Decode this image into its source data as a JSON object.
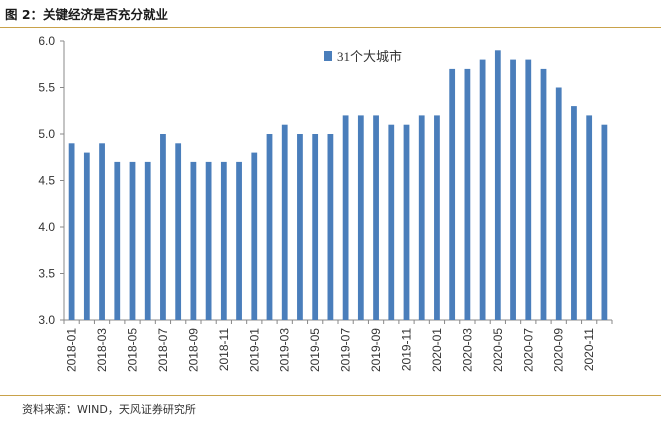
{
  "header": {
    "title": "图 2：关键经济是否充分就业"
  },
  "footer": {
    "source": "资料来源：WIND，天风证券研究所"
  },
  "colors": {
    "bar": "#4a7ebb",
    "rule": "#c9a24a",
    "axis": "#888888"
  },
  "chart_data": {
    "type": "bar",
    "title": "",
    "xlabel": "",
    "ylabel": "",
    "ylim": [
      3.0,
      6.0
    ],
    "yticks": [
      "3.0",
      "3.5",
      "4.0",
      "4.5",
      "5.0",
      "5.5",
      "6.0"
    ],
    "legend": {
      "position": "top-center"
    },
    "grid": false,
    "categories": [
      "2018-01",
      "2018-02",
      "2018-03",
      "2018-04",
      "2018-05",
      "2018-06",
      "2018-07",
      "2018-08",
      "2018-09",
      "2018-10",
      "2018-11",
      "2018-12",
      "2019-01",
      "2019-02",
      "2019-03",
      "2019-04",
      "2019-05",
      "2019-06",
      "2019-07",
      "2019-08",
      "2019-09",
      "2019-10",
      "2019-11",
      "2019-12",
      "2020-01",
      "2020-02",
      "2020-03",
      "2020-04",
      "2020-05",
      "2020-06",
      "2020-07",
      "2020-08",
      "2020-09",
      "2020-10",
      "2020-11",
      "2020-12"
    ],
    "xtick_labels": [
      "2018-01",
      "2018-03",
      "2018-05",
      "2018-07",
      "2018-09",
      "2018-11",
      "2019-01",
      "2019-03",
      "2019-05",
      "2019-07",
      "2019-09",
      "2019-11",
      "2020-01",
      "2020-03",
      "2020-05",
      "2020-07",
      "2020-09",
      "2020-11"
    ],
    "series": [
      {
        "name": "31个大城市",
        "values": [
          4.9,
          4.8,
          4.9,
          4.7,
          4.7,
          4.7,
          5.0,
          4.9,
          4.7,
          4.7,
          4.7,
          4.7,
          4.8,
          5.0,
          5.1,
          5.0,
          5.0,
          5.0,
          5.2,
          5.2,
          5.2,
          5.1,
          5.1,
          5.2,
          5.2,
          5.7,
          5.7,
          5.8,
          5.9,
          5.8,
          5.8,
          5.7,
          5.5,
          5.3,
          5.2,
          5.1
        ]
      }
    ]
  }
}
